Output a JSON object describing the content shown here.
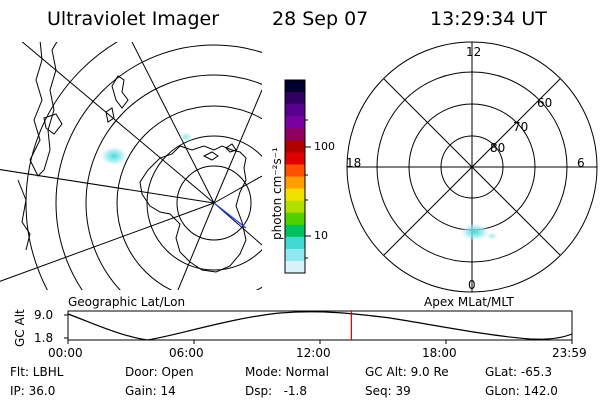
{
  "header": {
    "instrument": "Ultraviolet Imager",
    "date": "28 Sep 07",
    "time": "13:29:34 UT"
  },
  "colorbar": {
    "label": "photon cm⁻²s⁻¹",
    "ticks": [
      "100",
      "10"
    ],
    "colors": [
      "#000030",
      "#300060",
      "#5a0090",
      "#7a00a0",
      "#900060",
      "#b00000",
      "#e00000",
      "#ff5000",
      "#ffa000",
      "#f0e000",
      "#b0e000",
      "#50d000",
      "#00c060",
      "#40d8d0",
      "#90e8f0",
      "#d8f4f8"
    ]
  },
  "geo_map": {
    "title": "Geographic Lat/Lon"
  },
  "polar_plot": {
    "title": "Apex MLat/MLT",
    "hour_labels": [
      "12",
      "18",
      "6",
      "0"
    ],
    "lat_labels": [
      "60",
      "70",
      "80"
    ]
  },
  "timeline": {
    "axis_label": "GC Alt",
    "y_ticks": [
      "9.0",
      "1.8"
    ],
    "x_ticks": [
      "00:00",
      "06:00",
      "12:00",
      "18:00",
      "23:59"
    ],
    "current_fraction": 0.5622
  },
  "status": {
    "flt": "Flt: LBHL",
    "door": "Door: Open",
    "mode": "Mode: Normal",
    "gc_alt": "GC Alt: 9.0 Re",
    "glat": "GLat: -65.3",
    "ip": "IP: 36.0",
    "gain": "Gain: 14",
    "dsp": "Dsp:   -1.8",
    "seq": "Seq: 39",
    "glon": "GLon: 142.0"
  }
}
